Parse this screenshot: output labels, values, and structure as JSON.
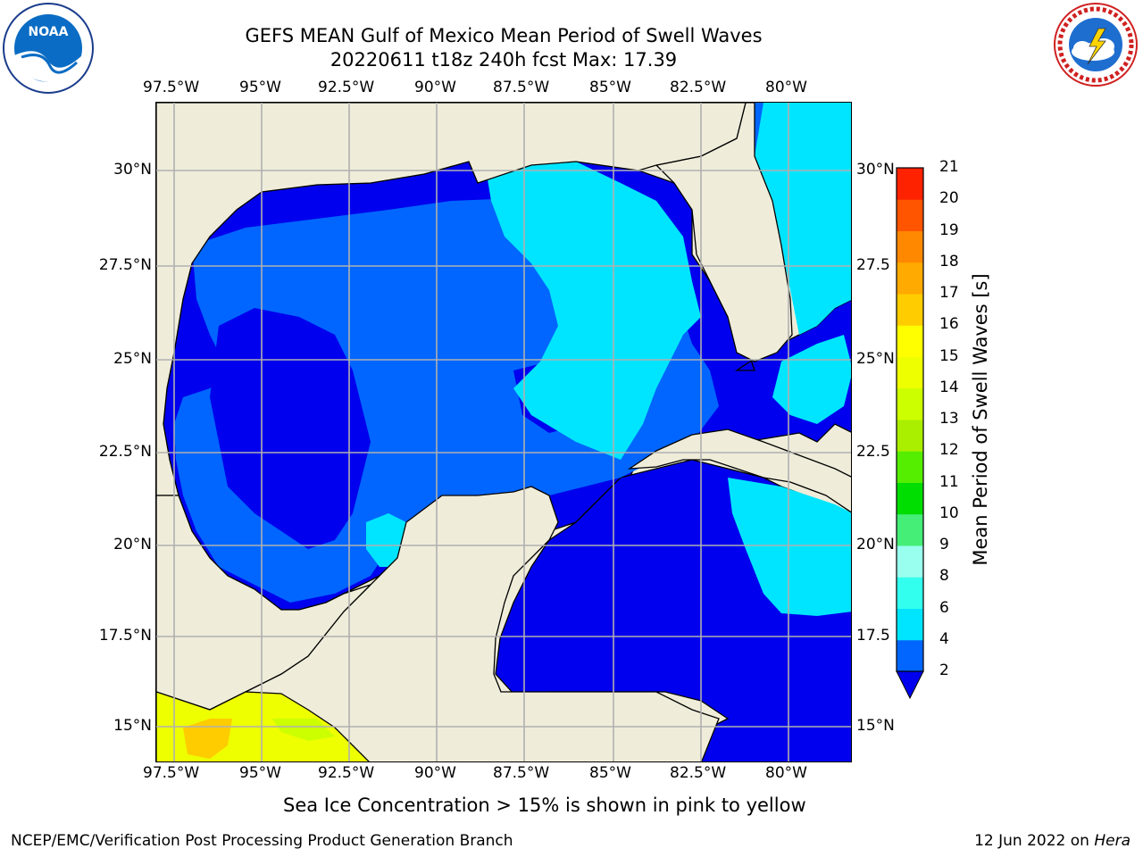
{
  "title": {
    "line1": "GEFS MEAN Gulf of Mexico Mean Period of Swell Waves",
    "line2": "20220611 t18z 240h fcst   Max: 17.39"
  },
  "map": {
    "lon_ticks": [
      "97.5°W",
      "95°W",
      "92.5°W",
      "90°W",
      "87.5°W",
      "85°W",
      "82.5°W",
      "80°W"
    ],
    "lat_ticks_left": [
      "30°N",
      "27.5°N",
      "25°N",
      "22.5°N",
      "20°N",
      "17.5°N",
      "15°N"
    ],
    "lat_ticks_right": [
      "30°N",
      "27.5",
      "25°N",
      "22.5",
      "20°N",
      "17.5",
      "15°N"
    ],
    "land_color": "#efedda",
    "grid_color": "#b0b0b0"
  },
  "colorbar": {
    "title": "Mean Period of Swell Waves [s]",
    "levels": [
      "2",
      "4",
      "6",
      "8",
      "9",
      "10",
      "11",
      "12",
      "13",
      "14",
      "15",
      "16",
      "17",
      "18",
      "19",
      "20",
      "21"
    ],
    "colors": [
      "#0066ff",
      "#00e5ff",
      "#33ffee",
      "#99ffee",
      "#44ee77",
      "#00dd00",
      "#55ee00",
      "#aaee00",
      "#ccff00",
      "#eeff00",
      "#ffff00",
      "#ffcc00",
      "#ffaa00",
      "#ff8800",
      "#ff5500",
      "#ff2200"
    ],
    "under_color": "#0000ee"
  },
  "caption": "Sea Ice Concentration > 15% is shown in pink to yellow",
  "footer": {
    "left": "NCEP/EMC/Verification Post Processing Product Generation Branch",
    "date": "12 Jun 2022 on ",
    "host": "Hera"
  },
  "logos": {
    "left_text": "NOAA",
    "right_text": "NATIONAL WEATHER SERVICE"
  }
}
